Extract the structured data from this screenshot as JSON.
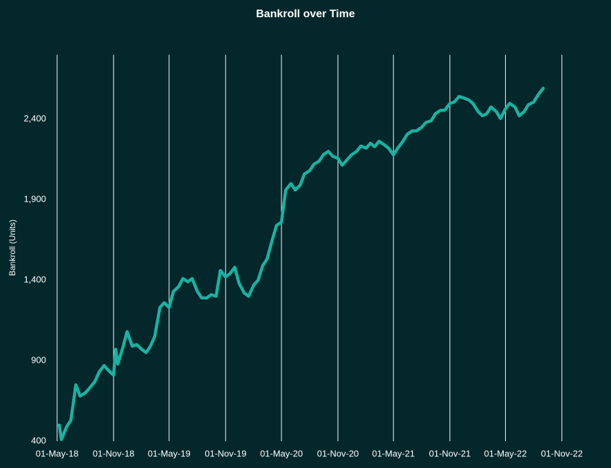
{
  "chart_data": {
    "type": "line",
    "title": "Bankroll over Time",
    "y_label": "Bankroll  (Units)",
    "x": [
      "2018-05-08",
      "2018-05-15",
      "2018-06-01",
      "2018-06-15",
      "2018-07-01",
      "2018-07-15",
      "2018-08-01",
      "2018-08-15",
      "2018-09-01",
      "2018-09-15",
      "2018-10-01",
      "2018-10-15",
      "2018-11-01",
      "2018-11-08",
      "2018-11-15",
      "2018-12-01",
      "2018-12-15",
      "2019-01-01",
      "2019-01-15",
      "2019-02-01",
      "2019-02-15",
      "2019-03-01",
      "2019-03-15",
      "2019-04-01",
      "2019-04-15",
      "2019-05-01",
      "2019-05-15",
      "2019-06-01",
      "2019-06-15",
      "2019-07-01",
      "2019-07-15",
      "2019-08-01",
      "2019-08-15",
      "2019-09-01",
      "2019-09-15",
      "2019-10-01",
      "2019-10-15",
      "2019-11-01",
      "2019-11-15",
      "2019-12-01",
      "2019-12-15",
      "2020-01-01",
      "2020-01-15",
      "2020-02-01",
      "2020-02-15",
      "2020-03-01",
      "2020-03-15",
      "2020-04-01",
      "2020-04-15",
      "2020-05-01",
      "2020-05-15",
      "2020-06-01",
      "2020-06-15",
      "2020-07-01",
      "2020-07-15",
      "2020-08-01",
      "2020-08-15",
      "2020-09-01",
      "2020-09-15",
      "2020-10-01",
      "2020-10-15",
      "2020-11-01",
      "2020-11-15",
      "2020-12-01",
      "2020-12-15",
      "2021-01-01",
      "2021-01-15",
      "2021-02-01",
      "2021-02-15",
      "2021-03-01",
      "2021-03-15",
      "2021-04-01",
      "2021-04-15",
      "2021-05-01",
      "2021-05-15",
      "2021-06-01",
      "2021-06-15",
      "2021-07-01",
      "2021-07-15",
      "2021-08-01",
      "2021-08-15",
      "2021-09-01",
      "2021-09-15",
      "2021-10-01",
      "2021-10-15",
      "2021-11-01",
      "2021-11-15",
      "2021-12-01",
      "2021-12-15",
      "2022-01-01",
      "2022-01-15",
      "2022-02-01",
      "2022-02-15",
      "2022-03-01",
      "2022-03-15",
      "2022-04-01",
      "2022-04-15",
      "2022-05-01",
      "2022-05-15",
      "2022-06-01",
      "2022-06-15",
      "2022-07-01",
      "2022-07-15",
      "2022-08-01",
      "2022-08-15",
      "2022-09-01"
    ],
    "series": [
      {
        "name": "Bankroll",
        "color": "#19b3a1",
        "values": [
          500,
          410,
          490,
          530,
          750,
          680,
          700,
          730,
          770,
          830,
          870,
          840,
          810,
          970,
          880,
          980,
          1080,
          990,
          1000,
          970,
          950,
          990,
          1050,
          1230,
          1260,
          1230,
          1330,
          1360,
          1410,
          1390,
          1410,
          1330,
          1290,
          1290,
          1310,
          1300,
          1460,
          1420,
          1440,
          1480,
          1380,
          1320,
          1300,
          1370,
          1400,
          1490,
          1530,
          1650,
          1740,
          1760,
          1960,
          2000,
          1960,
          1990,
          2060,
          2080,
          2120,
          2140,
          2180,
          2200,
          2170,
          2156,
          2114,
          2148,
          2178,
          2200,
          2233,
          2220,
          2250,
          2229,
          2263,
          2241,
          2220,
          2178,
          2220,
          2263,
          2306,
          2327,
          2327,
          2350,
          2380,
          2390,
          2434,
          2455,
          2455,
          2498,
          2506,
          2541,
          2532,
          2520,
          2498,
          2447,
          2421,
          2434,
          2476,
          2447,
          2404,
          2464,
          2498,
          2476,
          2421,
          2447,
          2490,
          2506,
          2550,
          2592
        ]
      }
    ],
    "xlim": [
      "2018-05-01",
      "2023-04-10"
    ],
    "xticks": [
      {
        "value": "2018-05-01",
        "label": "01-May-18"
      },
      {
        "value": "2018-11-01",
        "label": "01-Nov-18"
      },
      {
        "value": "2019-05-01",
        "label": "01-May-19"
      },
      {
        "value": "2019-11-01",
        "label": "01-Nov-19"
      },
      {
        "value": "2020-05-01",
        "label": "01-May-20"
      },
      {
        "value": "2020-11-01",
        "label": "01-Nov-20"
      },
      {
        "value": "2021-05-01",
        "label": "01-May-21"
      },
      {
        "value": "2021-11-01",
        "label": "01-Nov-21"
      },
      {
        "value": "2022-05-01",
        "label": "01-May-22"
      },
      {
        "value": "2022-11-01",
        "label": "01-Nov-22"
      }
    ],
    "ylim": [
      400,
      2800
    ],
    "yticks": [
      {
        "value": 400,
        "label": "400"
      },
      {
        "value": 900,
        "label": "900"
      },
      {
        "value": 1400,
        "label": "1,400"
      },
      {
        "value": 1900,
        "label": "1,900"
      },
      {
        "value": 2400,
        "label": "2,400"
      }
    ],
    "grid": "x"
  }
}
